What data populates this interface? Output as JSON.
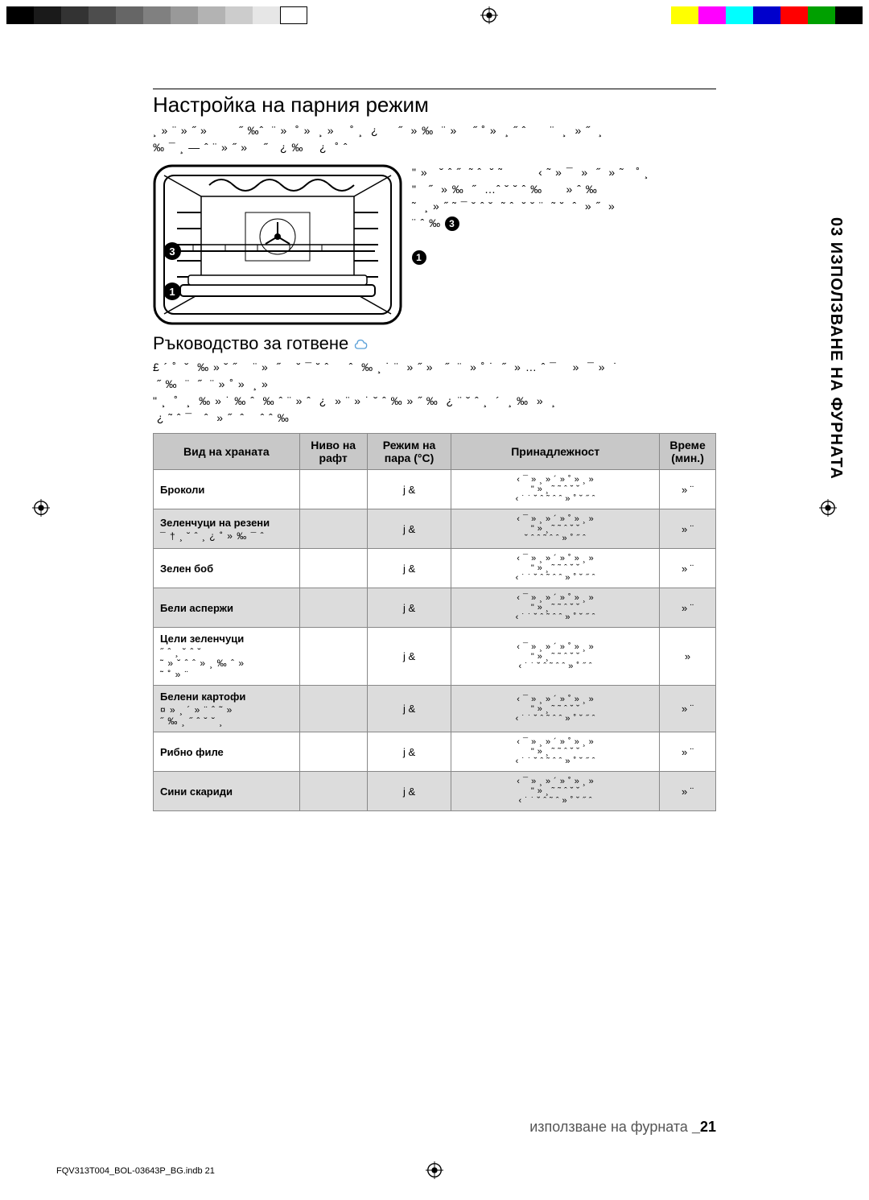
{
  "reg": {
    "grays": [
      "#000000",
      "#1a1a1a",
      "#333333",
      "#4d4d4d",
      "#666666",
      "#808080",
      "#999999",
      "#b3b3b3",
      "#cccccc",
      "#e6e6e6",
      "#ffffff"
    ],
    "colors": [
      "#ffff00",
      "#ff00ff",
      "#00ffff",
      "#0000cc",
      "#ff0000",
      "#00a000",
      "#000000"
    ]
  },
  "sideTab": "03 ИЗПОЛЗВАНЕ НА ФУРНАТА",
  "h1": "Настройка на парния режим",
  "intro_garbled": "¸ » ¨ » ˝ »        ˝ ‰ˆ  ¨ »  ˚ »  ¸ »    ˚ ¸  ¿     ˝  » ‰  ¨ »    ˝ ˚ »  ¸ ˝ ˆ      ¨  ¸  » ˝  ¸\n‰ ¯ ¸ — ˆ ¨ » ˝ »    ˝   ¿ ‰    ¿  ˚ ˆ",
  "right_garbled": "\" »   ˘ ˆ ˝  ˜ ˆ  ˘ ˜         ‹ ˜ » ¯  »  ˝  » ˜   ˚ ¸\n\"   ˝  » ‰  ˝  …ˆ ˘ ˘ ˆ ‰      » ˆ ‰\n˜  ¸ » ˝ ˜ ¯ ˘ ˆ ˘  ˜ ˆ  ˘ ˘ ¨  ˜ ˘  ˆ  » ˝  » \n¨ ˆ ‰",
  "callouts": {
    "a": "3",
    "b": "1"
  },
  "h2": "Ръководство за готвене",
  "h2_garbled": "£ ´ ˚  ˘  ‰ » ˘ ˝    ¨ »  ˝    ˘ ¯ ˘ ˆ     ˆ  ‰ ¸ ˙ ¨  » ˝ »   ˝  ¨  » ˚ ˙  ˝  » … ˆ ¯    »  ¯ »  ˙ \n ˝ ‰  ¨  ˝  ¨ » ˚ »  ¸ »\n\" ¸  ˚  ¸  ‰ » ˙ ‰ ˆ  ‰ ˆ ¨ » ˆ  ¿  » ¨ » ˙ ˘ ˆ ‰ » ˝ ‰  ¿ ¨ ˘ ˆ ¸  ´  ¸ ‰  »  ¸\n ¿ ˜ ˆ ¯   ˆ  » ˝  ˆ    ˆ ˆ ‰",
  "table": {
    "headers": [
      "Вид на храната",
      "Ниво на рафт",
      "Режим на пара (°C)",
      "Принадлежност",
      "Време (мин.)"
    ],
    "rows": [
      {
        "food": "Броколи",
        "foodSub": "",
        "shelf": "",
        "mode": "j &",
        "acc": "‹ ¯ »  ¸ » ´ » ˚ »  ¸ »\n\" »  ¸  ˜  ˜  ˆ  ˘  ˘\n‹ ˙ ˙   ˘  ˆ ˜ ˆ  ˆ  »  ˚ ˘ ˝ ˆ",
        "time": "» ¨"
      },
      {
        "food": "Зеленчуци на резени",
        "foodSub": "¯ †  ¸ ˘ ˆ  ¸  ¿ ˚ » ‰ ¯ ˆ",
        "shelf": "",
        "mode": "j &",
        "acc": "‹ ¯ »  ¸ » ´ » ˚ »  ¸ »\n\" »  ¸  ˜  ˜  ˆ  ˘  ˘\n˘  ˆ  ˆ  ˜ ˆ  ˆ  »  ˚ ˝ ˆ",
        "time": "» ¨"
      },
      {
        "food": "Зелен боб",
        "foodSub": "",
        "shelf": "",
        "mode": "j &",
        "acc": "‹ ¯ »  ¸ » ´ » ˚ »  ¸ »\n\" »  ¸  ˜  ˜  ˆ  ˘  ˘\n‹ ˙ ˙   ˘  ˆ ˜ ˆ  ˆ  »  ˚ ˘ ˝ ˆ",
        "time": "» ¨"
      },
      {
        "food": "Бели аспержи",
        "foodSub": "",
        "shelf": "",
        "mode": "j &",
        "acc": "‹ ¯ »  ¸ » ´ » ˚ »  ¸ »\n\" »  ¸  ˜  ˜  ˆ  ˘  ˘\n‹ ˙ ˙   ˘  ˆ ˜ ˆ  ˆ  »  ˚ ˘ ˝ ˆ",
        "time": "» ¨"
      },
      {
        "food": "Цели зеленчуци",
        "foodSub": "˝ ˆ  ¸ ˘ ˆ   ˘\n˜ »  ˘ ˆ  ˆ      »  ¸ ‰ ˆ  »\n˜ ˚  » ¨",
        "shelf": "",
        "mode": "j &",
        "acc": "‹ ¯ »  ¸ » ´ » ˚ »  ¸ »\n\" »  ¸  ˜  ˜  ˆ  ˘  ˘\n‹ ˙ ˙   ˘  ˆ ˜ ˆ  ˆ  »  ˚ ˝ ˆ",
        "time": "»"
      },
      {
        "food": "Белени картофи",
        "foodSub": "¤ »  ¸ ´ » ¨ ˆ  ˜  »\n˝ ‰  ¸ ˝  ˆ ˘ ˘  ¸",
        "shelf": "",
        "mode": "j &",
        "acc": "‹ ¯ »  ¸ » ´ » ˚ »  ¸ »\n\" »  ¸  ˜  ˜  ˆ  ˘  ˘\n‹ ˙ ˙   ˘  ˆ ˜ ˆ  ˆ  »  ˚ ˘ ˝ ˆ",
        "time": "» ¨"
      },
      {
        "food": "Рибно филе",
        "foodSub": "",
        "shelf": "",
        "mode": "j &",
        "acc": "‹ ¯ »  ¸ » ´ » ˚ »  ¸ »\n\" »  ¸  ˜  ˜  ˆ  ˘  ˘\n‹ ˙ ˙   ˘  ˆ ˜ ˆ  ˆ  »  ˚ ˘ ˝ ˆ",
        "time": "» ¨"
      },
      {
        "food": "Сини скариди",
        "foodSub": "",
        "shelf": "",
        "mode": "j &",
        "acc": "‹ ¯ »  ¸ » ´ » ˚ »  ¸ »\n\" »  ¸  ˜  ˜  ˆ  ˘  ˘\n‹ ˙ ˙   ˘  ˆ ˜ ˆ  »  ˚ ˘ ˝ ˆ",
        "time": "» ¨"
      }
    ],
    "column_align": [
      "left",
      "center",
      "center",
      "center",
      "center"
    ],
    "header_bg": "#c8c8c8",
    "row_even_bg": "#dcdcdc",
    "border_color": "#888888"
  },
  "footer": {
    "text": "използване на фурната ",
    "page": "_21"
  },
  "indb": "FQV313T004_BOL-03643P_BG.indb   21"
}
